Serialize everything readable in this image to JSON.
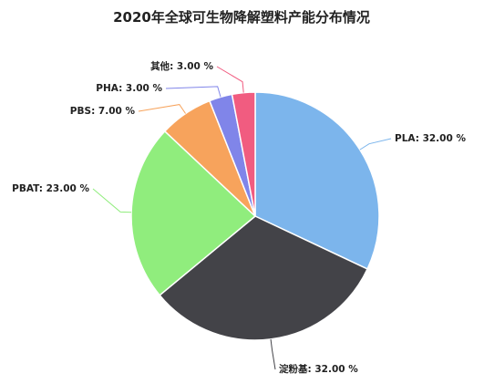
{
  "chart_data": {
    "type": "pie",
    "title": "2020年全球可生物降解塑料产能分布情况",
    "categories": [
      "PLA",
      "淀粉基",
      "PBAT",
      "PBS",
      "PHA",
      "其他"
    ],
    "values": [
      32,
      32,
      23,
      7,
      3,
      3
    ],
    "value_labels": [
      ": 32.00 %",
      ": 32.00 %",
      ": 23.00 %",
      ": 7.00 %",
      ": 3.00 %",
      ": 3.00 %"
    ],
    "colors": [
      "#7cb5ec",
      "#434348",
      "#90ed7d",
      "#f7a35c",
      "#8085e9",
      "#f15c80"
    ]
  }
}
